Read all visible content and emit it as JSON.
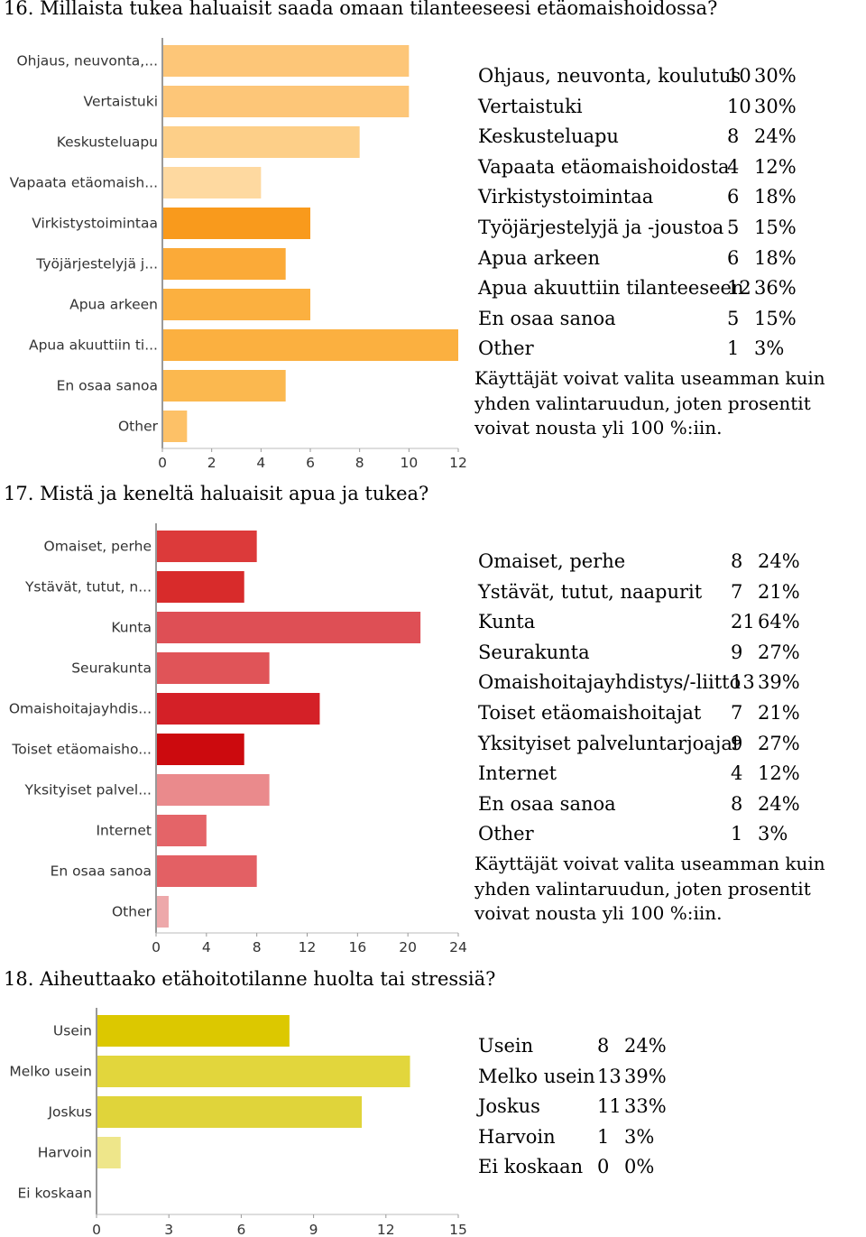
{
  "charts": [
    {
      "title": "16. Millaista tukea haluaisit saada omaan tilanteeseesi etäomaishoidossa?",
      "note": "Käyttäjät voivat valita useamman kuin yhden valintaruudun, joten prosentit voivat nousta yli 100 %:iin.",
      "rows": [
        {
          "label": "Ohjaus, neuvonta, koulutus",
          "count": "10",
          "pct": "30%"
        },
        {
          "label": "Vertaistuki",
          "count": "10",
          "pct": "30%"
        },
        {
          "label": "Keskusteluapu",
          "count": "8",
          "pct": "24%"
        },
        {
          "label": "Vapaata etäomaishoidosta",
          "count": "4",
          "pct": "12%"
        },
        {
          "label": "Virkistystoimintaa",
          "count": "6",
          "pct": "18%"
        },
        {
          "label": "Työjärjestelyjä ja -joustoa",
          "count": "5",
          "pct": "15%"
        },
        {
          "label": "Apua arkeen",
          "count": "6",
          "pct": "18%"
        },
        {
          "label": "Apua akuuttiin tilanteeseen",
          "count": "12",
          "pct": "36%"
        },
        {
          "label": "En osaa sanoa",
          "count": "5",
          "pct": "15%"
        },
        {
          "label": "Other",
          "count": "1",
          "pct": "3%"
        }
      ]
    },
    {
      "title": "17. Mistä ja keneltä haluaisit apua ja tukea?",
      "note": "Käyttäjät voivat valita useamman kuin yhden valintaruudun, joten prosentit voivat nousta yli 100 %:iin.",
      "rows": [
        {
          "label": "Omaiset, perhe",
          "count": "8",
          "pct": "24%"
        },
        {
          "label": "Ystävät, tutut, naapurit",
          "count": "7",
          "pct": "21%"
        },
        {
          "label": "Kunta",
          "count": "21",
          "pct": "64%"
        },
        {
          "label": "Seurakunta",
          "count": "9",
          "pct": "27%"
        },
        {
          "label": "Omaishoitajayhdistys/-liitto",
          "count": "13",
          "pct": "39%"
        },
        {
          "label": "Toiset etäomaishoitajat",
          "count": "7",
          "pct": "21%"
        },
        {
          "label": "Yksityiset palveluntarjoajat",
          "count": "9",
          "pct": "27%"
        },
        {
          "label": "Internet",
          "count": "4",
          "pct": "12%"
        },
        {
          "label": "En osaa sanoa",
          "count": "8",
          "pct": "24%"
        },
        {
          "label": "Other",
          "count": "1",
          "pct": "3%"
        }
      ]
    },
    {
      "title": "18. Aiheuttaako etähoitotilanne huolta tai stressiä?",
      "note": "",
      "rows": [
        {
          "label": "Usein",
          "count": "8",
          "pct": "24%"
        },
        {
          "label": "Melko usein",
          "count": "13",
          "pct": "39%"
        },
        {
          "label": "Joskus",
          "count": "11",
          "pct": "33%"
        },
        {
          "label": "Harvoin",
          "count": "1",
          "pct": "3%"
        },
        {
          "label": "Ei koskaan",
          "count": "0",
          "pct": "0%"
        }
      ]
    }
  ],
  "chart_data": [
    {
      "type": "bar",
      "orientation": "horizontal",
      "categories": [
        "Ohjaus, neuvonta,...",
        "Vertaistuki",
        "Keskusteluapu",
        "Vapaata etäomaish...",
        "Virkistystoimintaa",
        "Työjärjestelyjä j...",
        "Apua arkeen",
        "Apua akuuttiin ti...",
        "En osaa sanoa",
        "Other"
      ],
      "values": [
        10,
        10,
        8,
        4,
        6,
        5,
        6,
        12,
        5,
        1
      ],
      "colors": [
        "#fdc678",
        "#fdc678",
        "#fdcf88",
        "#fed9a0",
        "#f99a1c",
        "#fbaa38",
        "#fbb040",
        "#fbb040",
        "#fbb84f",
        "#fdc167"
      ],
      "xlim": [
        0,
        12
      ],
      "xticks": [
        "0",
        "2",
        "4",
        "6",
        "8",
        "10",
        "12"
      ]
    },
    {
      "type": "bar",
      "orientation": "horizontal",
      "categories": [
        "Omaiset, perhe",
        "Ystävät, tutut, n...",
        "Kunta",
        "Seurakunta",
        "Omaishoitajayhdis...",
        "Toiset etäomaisho...",
        "Yksityiset palvel...",
        "Internet",
        "En osaa sanoa",
        "Other"
      ],
      "values": [
        8,
        7,
        21,
        9,
        13,
        7,
        9,
        4,
        8,
        1
      ],
      "colors": [
        "#dc3a3a",
        "#d82b2b",
        "#de4f55",
        "#e05458",
        "#d42027",
        "#cc0a0e",
        "#ea8a8c",
        "#e46468",
        "#e36064",
        "#eda8aa"
      ],
      "xlim": [
        0,
        24
      ],
      "xticks": [
        "0",
        "4",
        "8",
        "12",
        "16",
        "20",
        "24"
      ]
    },
    {
      "type": "bar",
      "orientation": "horizontal",
      "categories": [
        "Usein",
        "Melko usein",
        "Joskus",
        "Harvoin",
        "Ei koskaan"
      ],
      "values": [
        8,
        13,
        11,
        1,
        0
      ],
      "colors": [
        "#dcc800",
        "#e2d63c",
        "#e0d43a",
        "#eee68a",
        "#eee68a"
      ],
      "xlim": [
        0,
        15
      ],
      "xticks": [
        "0",
        "3",
        "6",
        "9",
        "12",
        "15"
      ]
    }
  ]
}
